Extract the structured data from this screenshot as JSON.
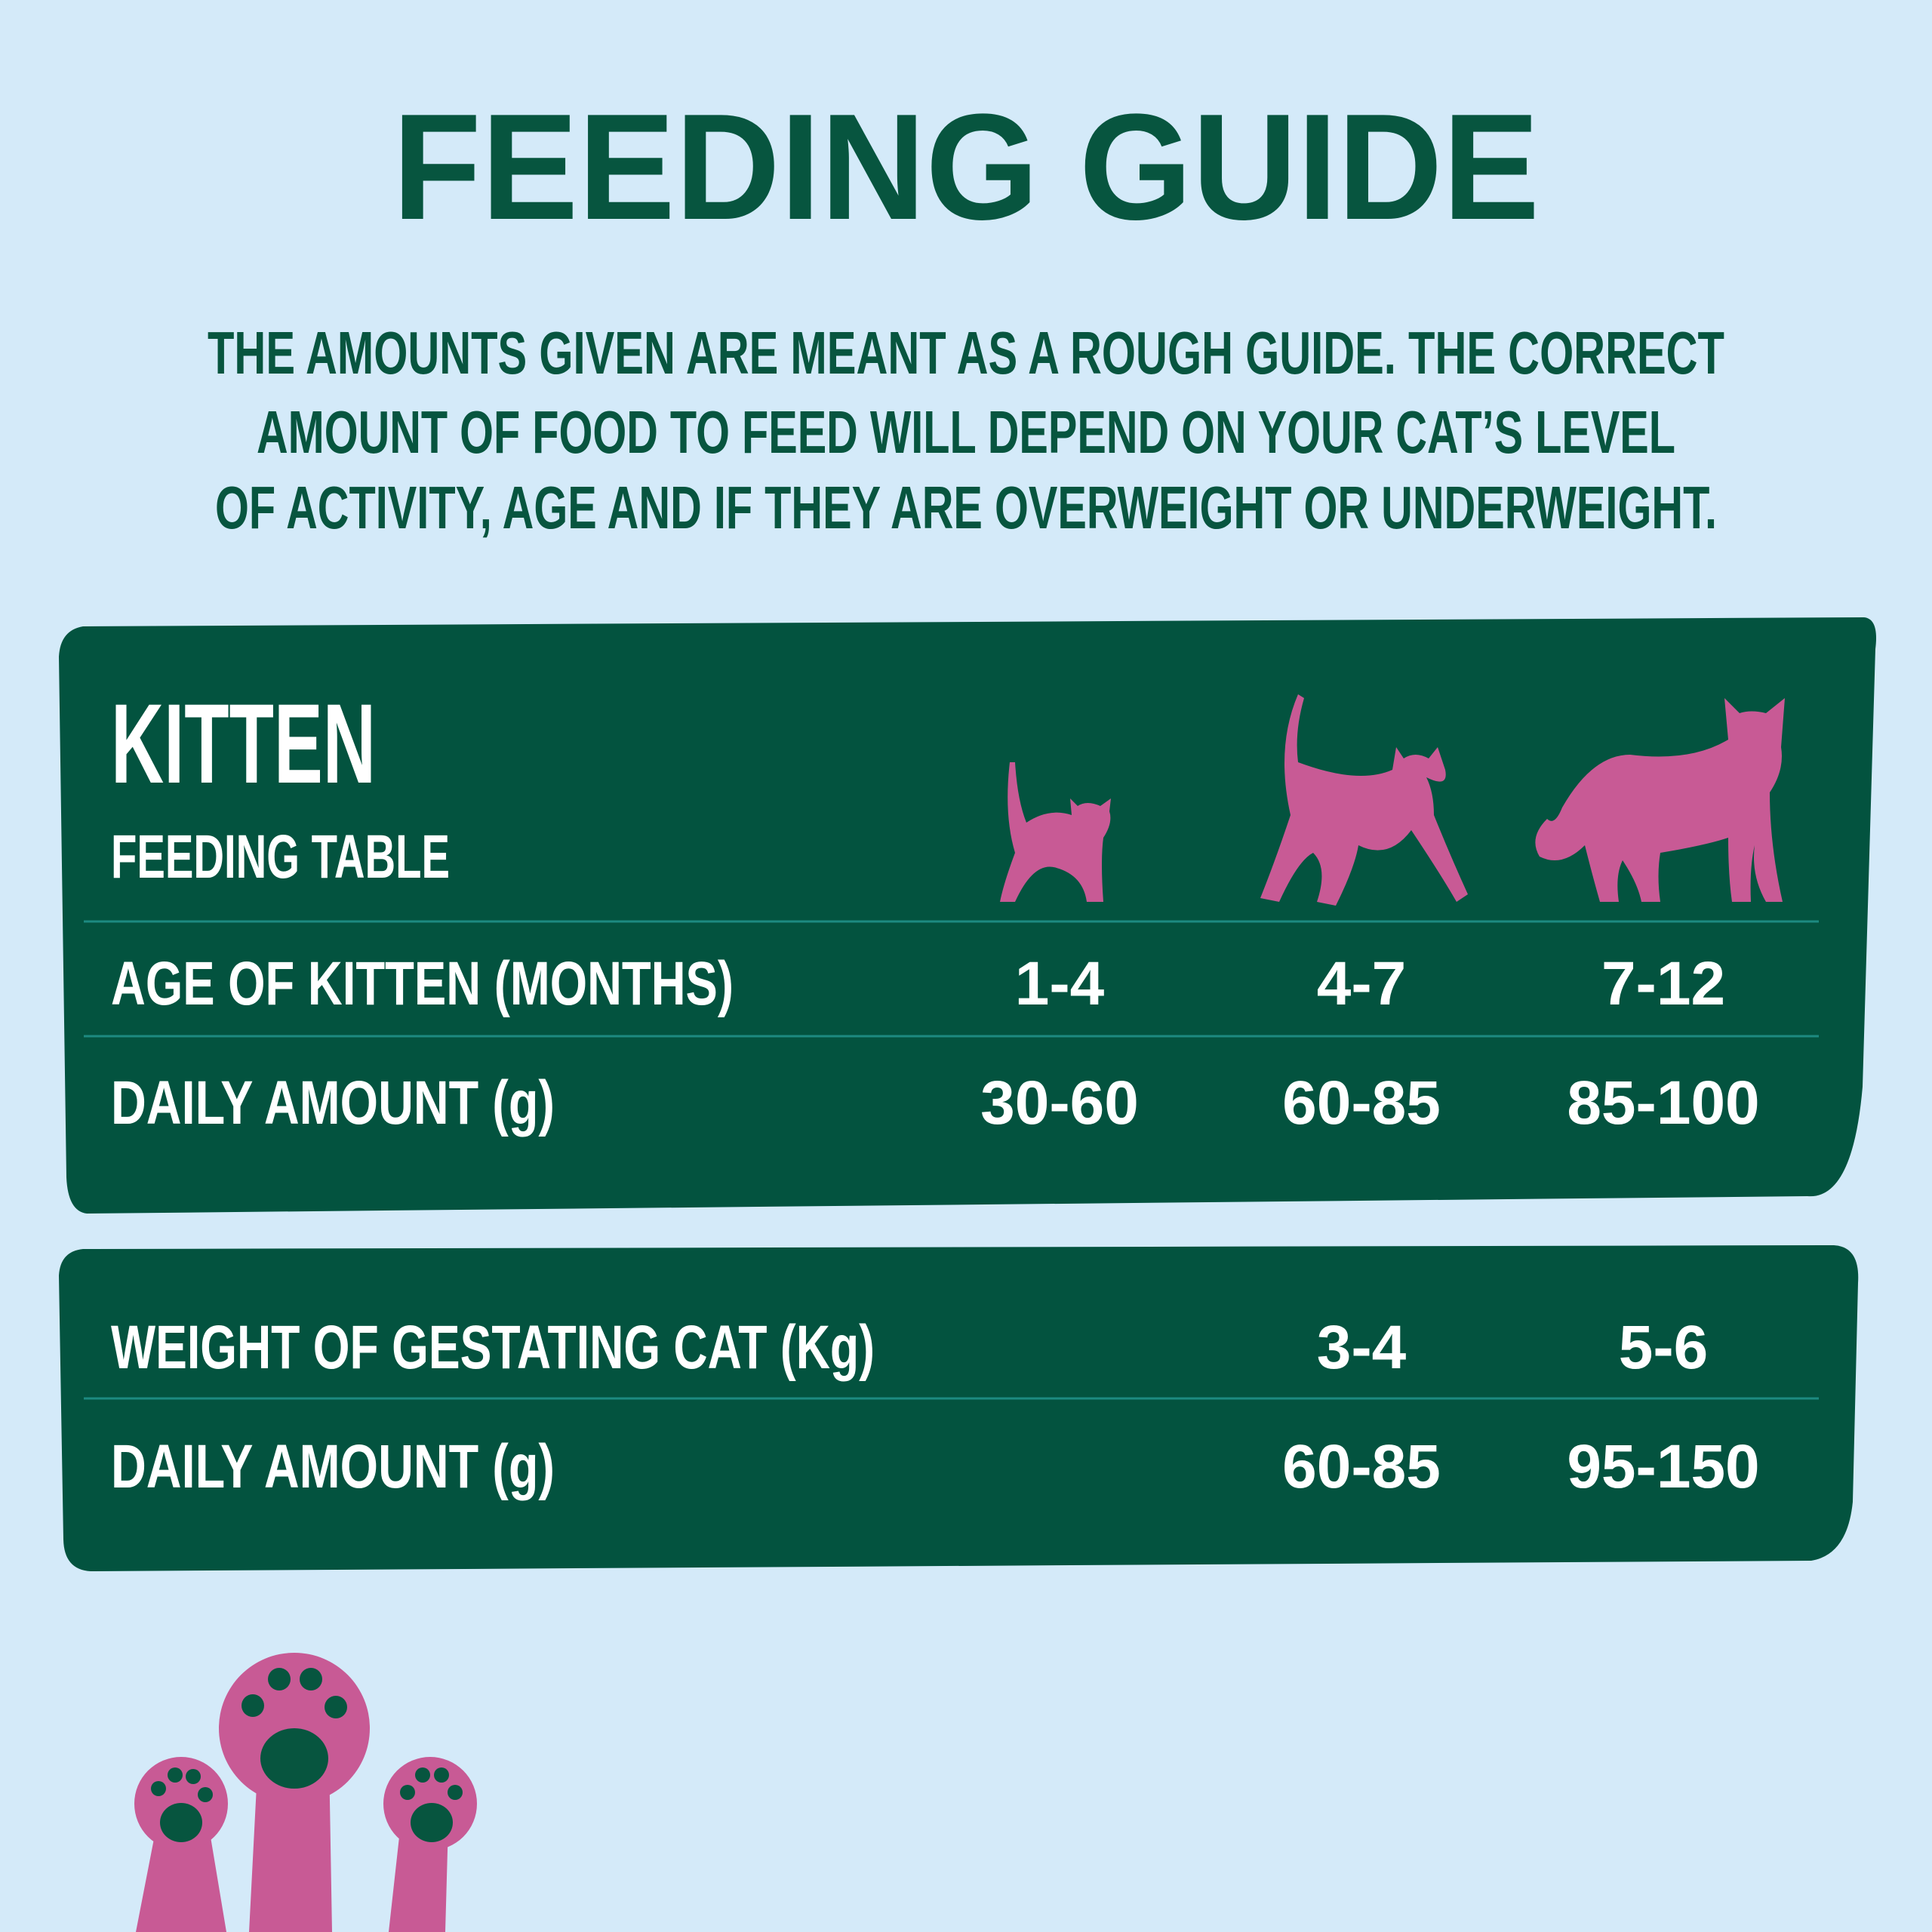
{
  "header": {
    "title": "FEEDING GUIDE",
    "intro": [
      "THE AMOUNTS GIVEN ARE MEANT AS A ROUGH GUIDE. THE CORRECT",
      "AMOUNT OF FOOD TO FEED WILL DEPEND ON YOUR CAT’S LEVEL",
      "OF ACTIVITY, AGE AND IF THEY ARE OVERWEIGHT OR UNDERWEIGHT."
    ]
  },
  "kitten_table": {
    "title": "KITTEN",
    "subtitle": "FEEDING TABLE",
    "rows": [
      [
        "AGE OF KITTEN (MONTHS)",
        "1-4",
        "4-7",
        "7-12"
      ],
      [
        "DAILY AMOUNT (g)",
        "30-60",
        "60-85",
        "85-100"
      ]
    ]
  },
  "gestating_table": {
    "rows": [
      [
        "WEIGHT OF GESTATING CAT (Kg)",
        "3-4",
        "5-6"
      ],
      [
        "DAILY AMOUNT (g)",
        "60-85",
        "95-150"
      ]
    ]
  }
}
